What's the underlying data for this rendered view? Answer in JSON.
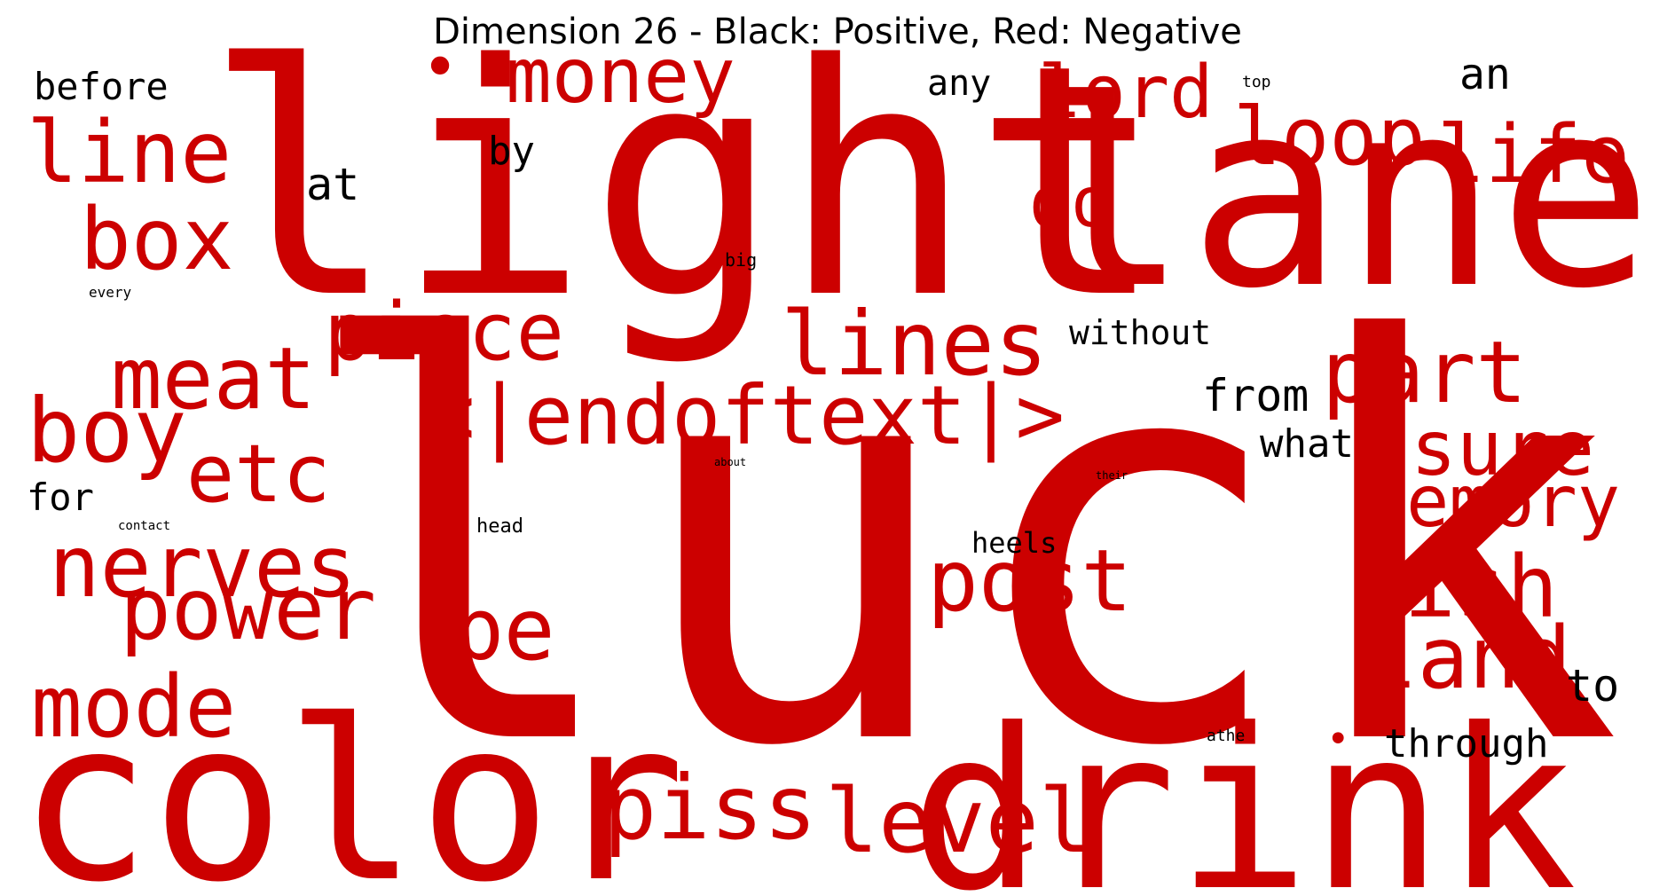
{
  "chart_data": {
    "type": "wordcloud",
    "title": "Dimension 26 - Black: Positive, Red: Negative",
    "colors": {
      "positive": "#000000",
      "negative": "#cc0000"
    },
    "words": [
      {
        "text": "luck",
        "sign": "negative",
        "weight": 1.0
      },
      {
        "text": "light",
        "sign": "negative",
        "weight": 0.62
      },
      {
        "text": "lane",
        "sign": "negative",
        "weight": 0.52
      },
      {
        "text": "drink",
        "sign": "negative",
        "weight": 0.45
      },
      {
        "text": "color",
        "sign": "negative",
        "weight": 0.45
      },
      {
        "text": "<|endoftext|>",
        "sign": "negative",
        "weight": 0.2
      },
      {
        "text": "lines",
        "sign": "negative",
        "weight": 0.2
      },
      {
        "text": "piss",
        "sign": "negative",
        "weight": 0.19
      },
      {
        "text": "level",
        "sign": "negative",
        "weight": 0.19
      },
      {
        "text": "post",
        "sign": "negative",
        "weight": 0.18
      },
      {
        "text": "meat",
        "sign": "negative",
        "weight": 0.18
      },
      {
        "text": "boy",
        "sign": "negative",
        "weight": 0.18
      },
      {
        "text": "nerves",
        "sign": "negative",
        "weight": 0.18
      },
      {
        "text": "power",
        "sign": "negative",
        "weight": 0.18
      },
      {
        "text": "mode",
        "sign": "negative",
        "weight": 0.18
      },
      {
        "text": "piece",
        "sign": "negative",
        "weight": 0.17
      },
      {
        "text": "etc",
        "sign": "negative",
        "weight": 0.17
      },
      {
        "text": "be",
        "sign": "negative",
        "weight": 0.17
      },
      {
        "text": "fish",
        "sign": "negative",
        "weight": 0.17
      },
      {
        "text": "land",
        "sign": "negative",
        "weight": 0.17
      },
      {
        "text": "part",
        "sign": "negative",
        "weight": 0.17
      },
      {
        "text": "line",
        "sign": "negative",
        "weight": 0.17
      },
      {
        "text": "box",
        "sign": "negative",
        "weight": 0.17
      },
      {
        "text": "money",
        "sign": "negative",
        "weight": 0.16
      },
      {
        "text": "loop",
        "sign": "negative",
        "weight": 0.16
      },
      {
        "text": "life",
        "sign": "negative",
        "weight": 0.16
      },
      {
        "text": "memory",
        "sign": "negative",
        "weight": 0.16
      },
      {
        "text": "sure",
        "sign": "negative",
        "weight": 0.16
      },
      {
        "text": "lord",
        "sign": "negative",
        "weight": 0.15
      },
      {
        "text": "do",
        "sign": "negative",
        "weight": 0.14
      },
      {
        "text": "from",
        "sign": "positive",
        "weight": 0.09
      },
      {
        "text": "at",
        "sign": "positive",
        "weight": 0.09
      },
      {
        "text": "to",
        "sign": "positive",
        "weight": 0.09
      },
      {
        "text": "through",
        "sign": "positive",
        "weight": 0.08
      },
      {
        "text": "what",
        "sign": "positive",
        "weight": 0.08
      },
      {
        "text": "an",
        "sign": "positive",
        "weight": 0.08
      },
      {
        "text": "before",
        "sign": "positive",
        "weight": 0.08
      },
      {
        "text": "by",
        "sign": "positive",
        "weight": 0.08
      },
      {
        "text": "any",
        "sign": "positive",
        "weight": 0.08
      },
      {
        "text": "for",
        "sign": "positive",
        "weight": 0.08
      },
      {
        "text": "without",
        "sign": "positive",
        "weight": 0.07
      },
      {
        "text": "heels",
        "sign": "positive",
        "weight": 0.06
      },
      {
        "text": "head",
        "sign": "positive",
        "weight": 0.05
      },
      {
        "text": "big",
        "sign": "positive",
        "weight": 0.05
      },
      {
        "text": "every",
        "sign": "positive",
        "weight": 0.04
      },
      {
        "text": "athe",
        "sign": "positive",
        "weight": 0.04
      },
      {
        "text": "top",
        "sign": "positive",
        "weight": 0.04
      },
      {
        "text": "contact",
        "sign": "positive",
        "weight": 0.03
      },
      {
        "text": "about",
        "sign": "positive",
        "weight": 0.03
      },
      {
        "text": "their",
        "sign": "positive",
        "weight": 0.03
      },
      {
        "text": "•",
        "sign": "negative",
        "weight": 0.12
      },
      {
        "text": "•",
        "sign": "negative",
        "weight": 0.08
      }
    ]
  }
}
